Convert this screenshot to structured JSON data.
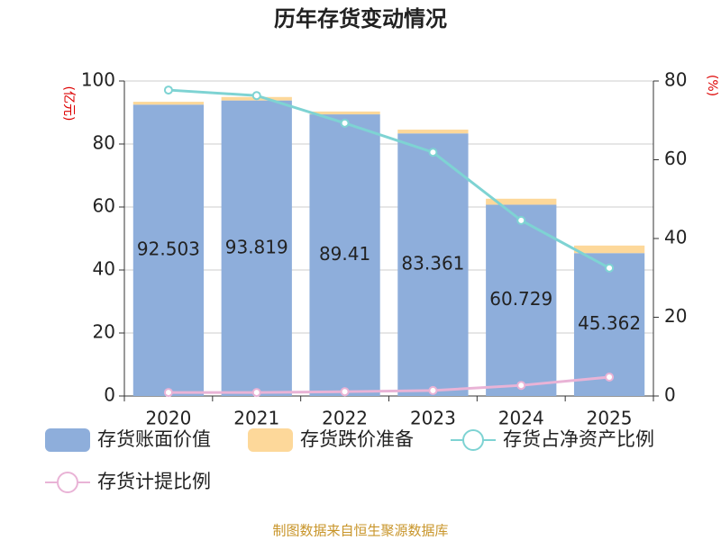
{
  "chart_data": {
    "type": "bar",
    "title": "历年存货变动情况",
    "y_label": "(亿元)",
    "y2_label": "(%)",
    "categories": [
      "2020",
      "2021",
      "2022",
      "2023",
      "2024",
      "2025"
    ],
    "series": [
      {
        "name": "存货账面价值",
        "type": "bar",
        "color": "#8eaedb",
        "labels": true,
        "values": [
          92.503,
          93.819,
          89.41,
          83.361,
          60.729,
          45.362
        ]
      },
      {
        "name": "存货跌价准备",
        "type": "bar",
        "color": "#fdd89a",
        "values": [
          0.9,
          1.1,
          0.9,
          1.2,
          1.9,
          2.4
        ]
      },
      {
        "name": "存货占净资产比例",
        "type": "line",
        "axis": "y2",
        "color": "#7ed3d3",
        "values": [
          77.7,
          76.3,
          69.3,
          61.9,
          44.6,
          32.5
        ]
      },
      {
        "name": "存货计提比例",
        "type": "line",
        "axis": "y2",
        "color": "#e9b3d6",
        "values": [
          0.9,
          0.9,
          1.1,
          1.4,
          2.7,
          4.8
        ]
      }
    ],
    "ylim": [
      0,
      100
    ],
    "yticks": [
      0,
      20,
      40,
      60,
      80,
      100
    ],
    "y2lim": [
      0,
      80
    ],
    "y2ticks": [
      0,
      20,
      40,
      60,
      80
    ],
    "grid": true,
    "source": "制图数据来自恒生聚源数据库"
  }
}
